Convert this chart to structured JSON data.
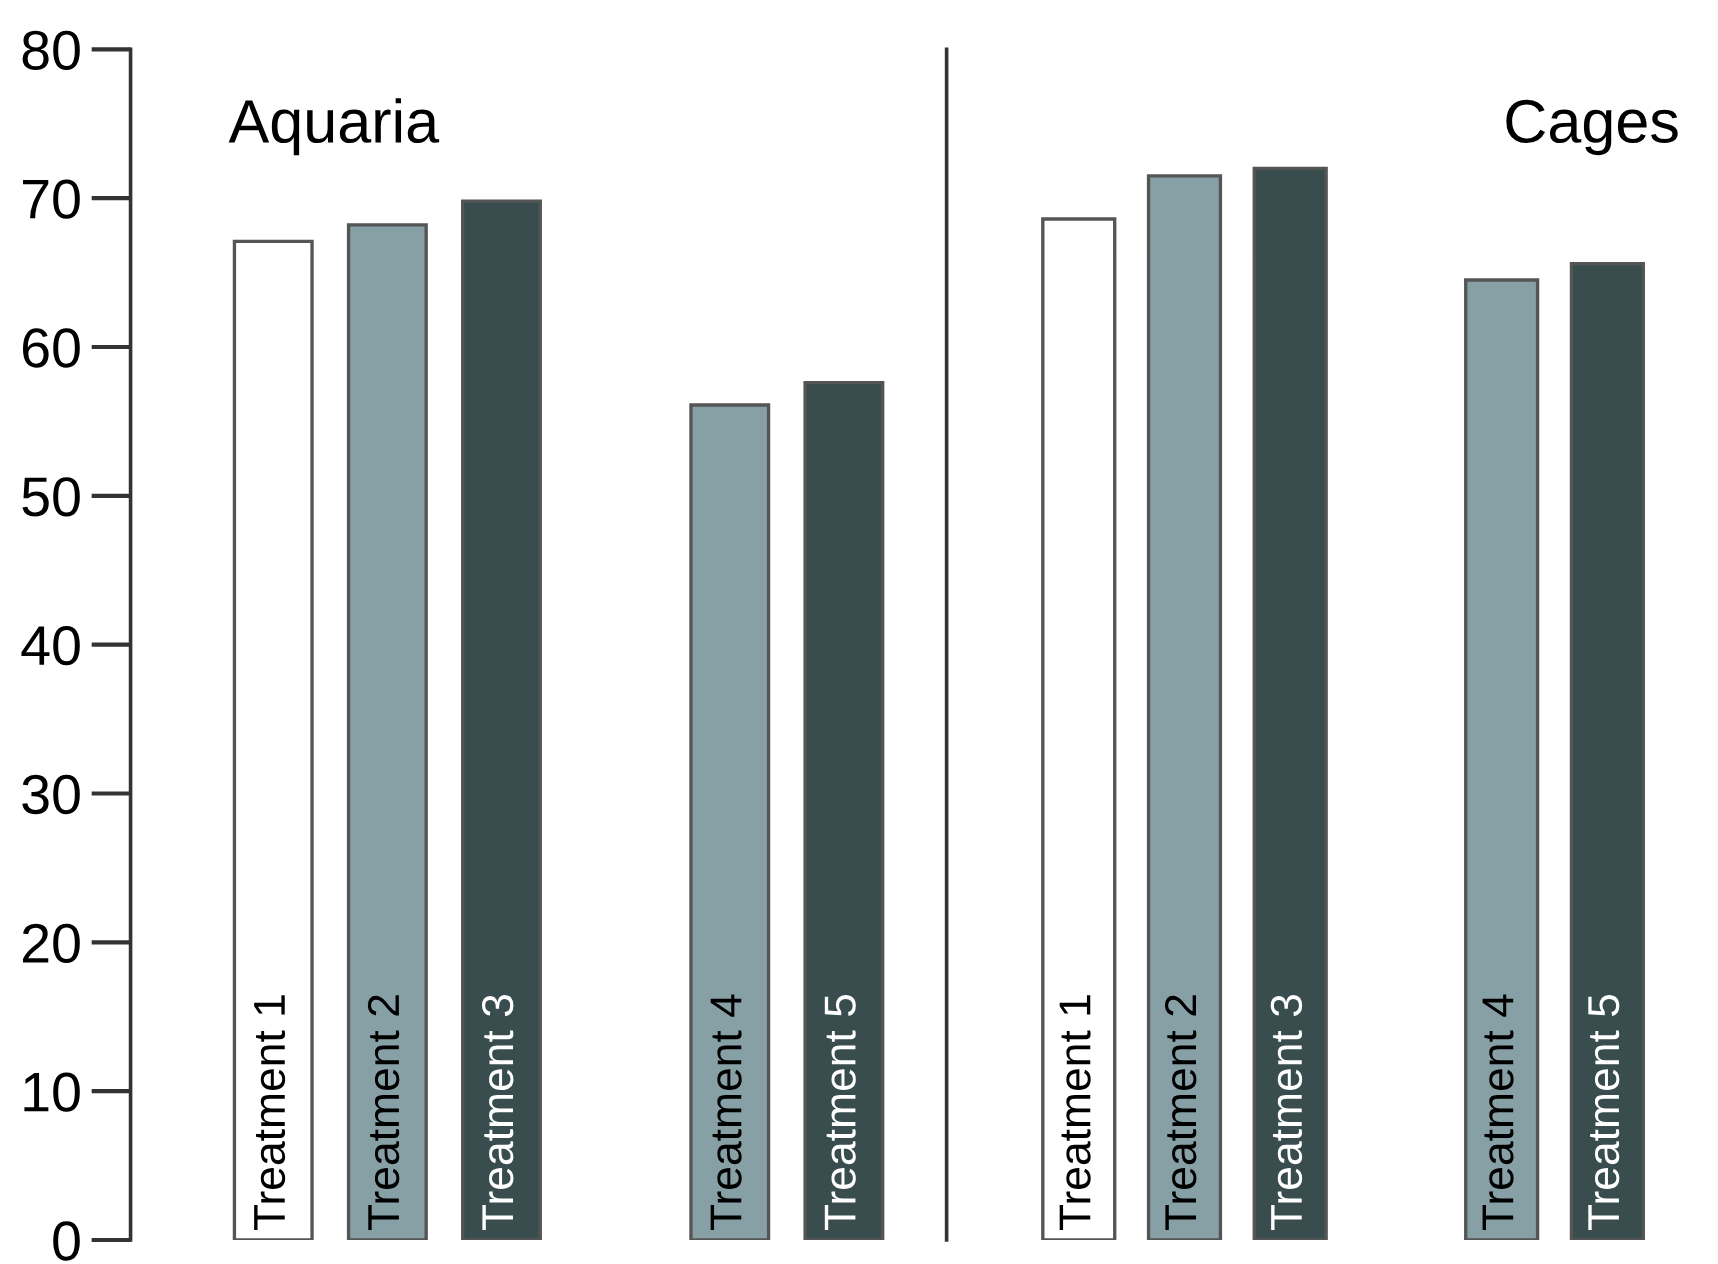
{
  "chart_data": [
    {
      "type": "bar",
      "title": "Aquaria",
      "categories": [
        "Treatment 1",
        "Treatment 2",
        "Treatment 3",
        null,
        "Treatment 4",
        "Treatment 5"
      ],
      "values": [
        67.1,
        68.2,
        69.8,
        null,
        56.1,
        57.6
      ],
      "colors": [
        "#ffffff",
        "#87a0a6",
        "#394d4f",
        null,
        "#87a0a6",
        "#394d4f"
      ],
      "ylim": [
        0,
        80
      ],
      "yticks": [
        0,
        10,
        20,
        30,
        40,
        50,
        60,
        70,
        80
      ],
      "grid": false,
      "legend": false
    },
    {
      "type": "bar",
      "title": "Cages",
      "categories": [
        "Treatment 1",
        "Treatment 2",
        "Treatment 3",
        null,
        "Treatment 4",
        "Treatment 5"
      ],
      "values": [
        68.6,
        71.5,
        72.0,
        null,
        64.5,
        65.6
      ],
      "colors": [
        "#ffffff",
        "#87a0a6",
        "#394d4f",
        null,
        "#87a0a6",
        "#394d4f"
      ],
      "ylim": [
        0,
        80
      ],
      "yticks": [
        0,
        10,
        20,
        30,
        40,
        50,
        60,
        70,
        80
      ],
      "tick_labels": false,
      "grid": false,
      "legend": false
    }
  ]
}
